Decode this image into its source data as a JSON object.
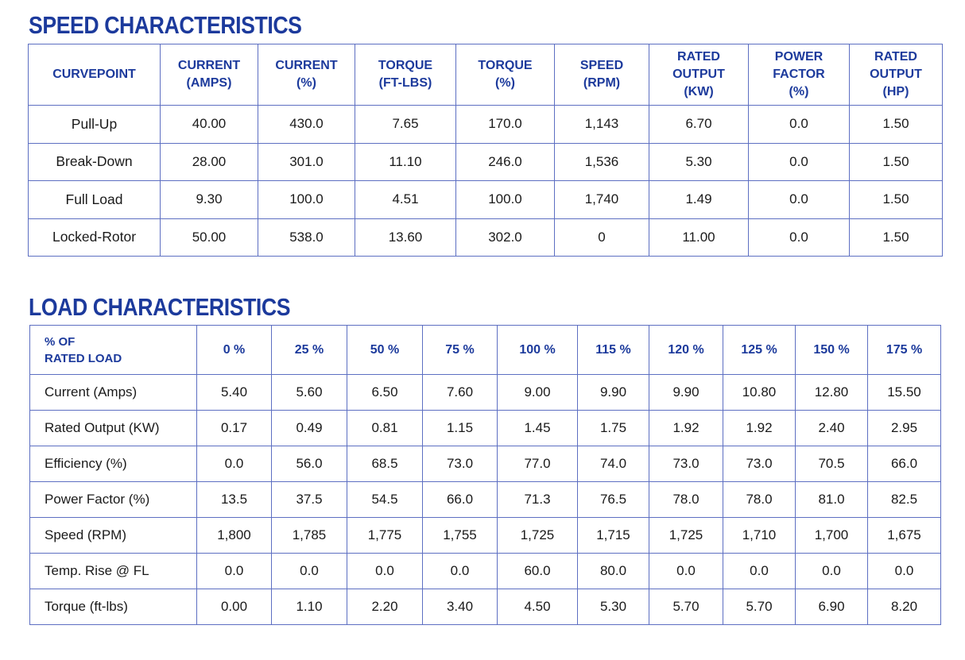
{
  "speed": {
    "title": "SPEED CHARACTERISTICS",
    "headers": [
      "CURVEPOINT",
      "CURRENT\n(AMPS)",
      "CURRENT\n(%)",
      "TORQUE\n(FT-LBS)",
      "TORQUE\n(%)",
      "SPEED\n(RPM)",
      "RATED\nOUTPUT\n(KW)",
      "POWER\nFACTOR\n(%)",
      "RATED\nOUTPUT\n(HP)"
    ],
    "rows": [
      [
        "Pull-Up",
        "40.00",
        "430.0",
        "7.65",
        "170.0",
        "1,143",
        "6.70",
        "0.0",
        "1.50"
      ],
      [
        "Break-Down",
        "28.00",
        "301.0",
        "11.10",
        "246.0",
        "1,536",
        "5.30",
        "0.0",
        "1.50"
      ],
      [
        "Full Load",
        "9.30",
        "100.0",
        "4.51",
        "100.0",
        "1,740",
        "1.49",
        "0.0",
        "1.50"
      ],
      [
        "Locked-Rotor",
        "50.00",
        "538.0",
        "13.60",
        "302.0",
        "0",
        "11.00",
        "0.0",
        "1.50"
      ]
    ]
  },
  "load": {
    "title": "LOAD CHARACTERISTICS",
    "headers": [
      "% OF\nRATED LOAD",
      "0 %",
      "25 %",
      "50 %",
      "75 %",
      "100 %",
      "115 %",
      "120 %",
      "125 %",
      "150 %",
      "175 %"
    ],
    "rows": [
      [
        "Current (Amps)",
        "5.40",
        "5.60",
        "6.50",
        "7.60",
        "9.00",
        "9.90",
        "9.90",
        "10.80",
        "12.80",
        "15.50"
      ],
      [
        "Rated Output (KW)",
        "0.17",
        "0.49",
        "0.81",
        "1.15",
        "1.45",
        "1.75",
        "1.92",
        "1.92",
        "2.40",
        "2.95"
      ],
      [
        "Efficiency (%)",
        "0.0",
        "56.0",
        "68.5",
        "73.0",
        "77.0",
        "74.0",
        "73.0",
        "73.0",
        "70.5",
        "66.0"
      ],
      [
        "Power Factor (%)",
        "13.5",
        "37.5",
        "54.5",
        "66.0",
        "71.3",
        "76.5",
        "78.0",
        "78.0",
        "81.0",
        "82.5"
      ],
      [
        "Speed (RPM)",
        "1,800",
        "1,785",
        "1,775",
        "1,755",
        "1,725",
        "1,715",
        "1,725",
        "1,710",
        "1,700",
        "1,675"
      ],
      [
        "Temp. Rise @ FL",
        "0.0",
        "0.0",
        "0.0",
        "0.0",
        "60.0",
        "80.0",
        "0.0",
        "0.0",
        "0.0",
        "0.0"
      ],
      [
        "Torque (ft-lbs)",
        "0.00",
        "1.10",
        "2.20",
        "3.40",
        "4.50",
        "5.30",
        "5.70",
        "5.70",
        "6.90",
        "8.20"
      ]
    ]
  }
}
